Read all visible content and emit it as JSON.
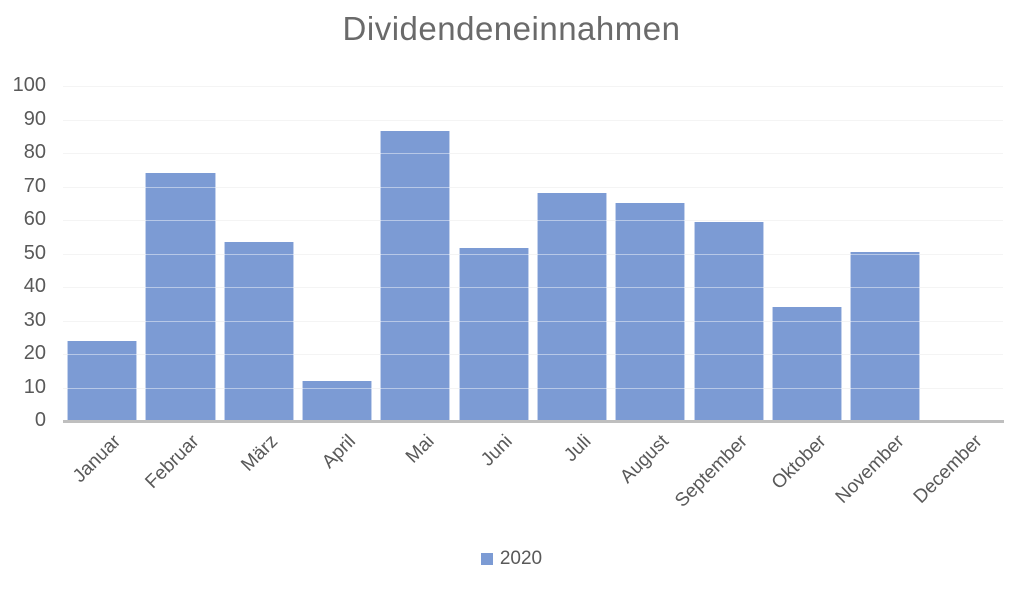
{
  "title": "Dividendeneinnahmen",
  "legend": {
    "items": [
      {
        "label": "2020",
        "color": "#7c9bd4",
        "marker": "square-icon"
      }
    ]
  },
  "chart_data": {
    "type": "bar",
    "title": "Dividendeneinnahmen",
    "categories": [
      "Januar",
      "Februar",
      "März",
      "April",
      "Mai",
      "Juni",
      "Juli",
      "August",
      "September",
      "Oktober",
      "November",
      "December"
    ],
    "series": [
      {
        "name": "2020",
        "values": [
          24,
          74,
          53.5,
          12,
          86.5,
          51.5,
          68,
          65,
          59.5,
          34,
          50.5,
          0
        ]
      }
    ],
    "xlabel": "",
    "ylabel": "",
    "ylim": [
      0,
      100
    ],
    "yticks": [
      0,
      10,
      20,
      30,
      40,
      50,
      60,
      70,
      80,
      90,
      100
    ],
    "grid": true,
    "legend_position": "bottom",
    "x_label_rotation_deg": -45,
    "bar_color": "#7c9bd4",
    "gridline_color": "#ececec",
    "axis_line_color": "#bfbfbf",
    "axis_text_color": "#595959",
    "title_color": "#6a6a6a"
  }
}
